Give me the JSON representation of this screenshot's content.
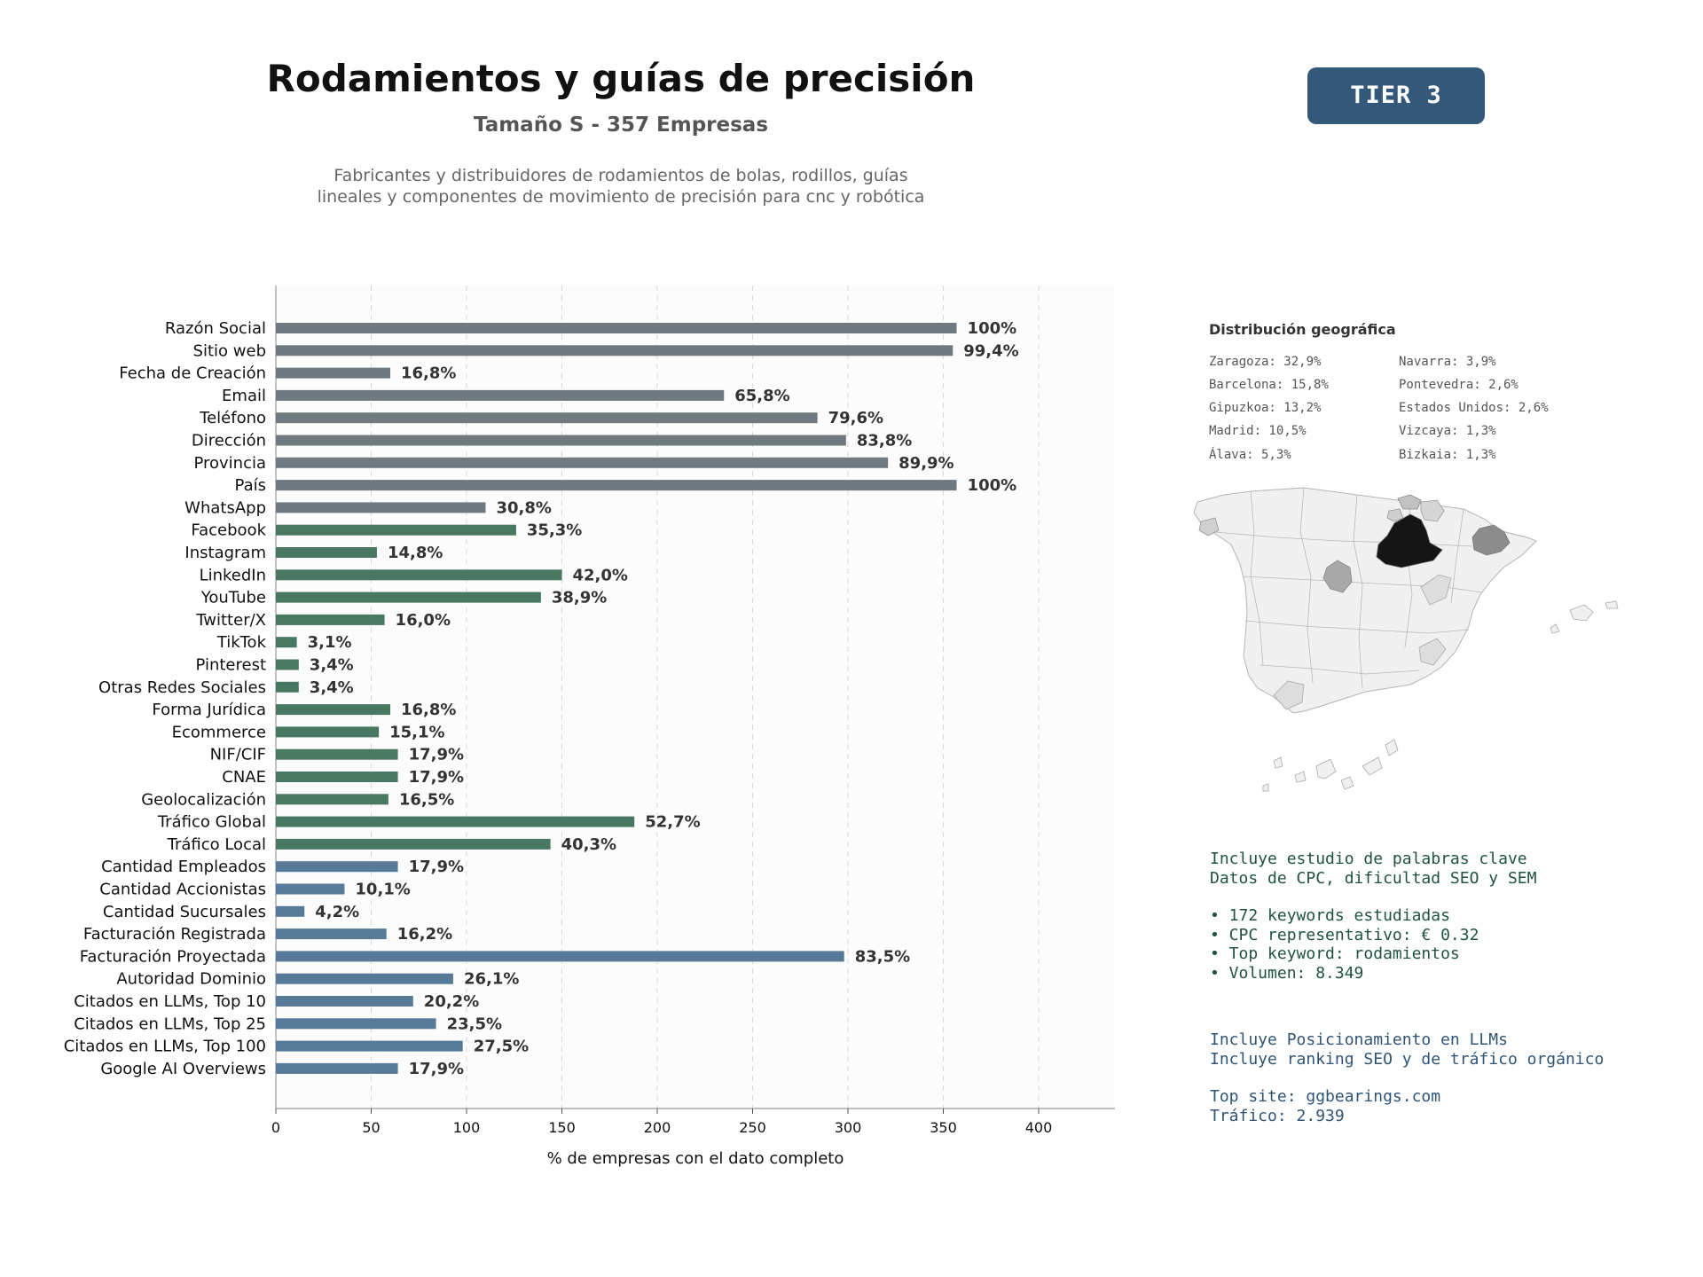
{
  "header": {
    "title": "Rodamientos y guías de precisión",
    "subtitle": "Tamaño S - 357 Empresas",
    "description_line1": "Fabricantes y distribuidores de rodamientos de bolas, rodillos, guías",
    "description_line2": "lineales y componentes de movimiento de precisión para cnc y robótica",
    "tier": "TIER 3"
  },
  "chart_data": {
    "type": "bar",
    "orientation": "horizontal",
    "xlabel": "% de empresas con el dato completo",
    "xlim": [
      0,
      440
    ],
    "xticks": [
      0,
      50,
      100,
      150,
      200,
      250,
      300,
      350,
      400
    ],
    "grid": true,
    "categories": [
      "Razón Social",
      "Sitio web",
      "Fecha de Creación",
      "Email",
      "Teléfono",
      "Dirección",
      "Provincia",
      "País",
      "WhatsApp",
      "Facebook",
      "Instagram",
      "LinkedIn",
      "YouTube",
      "Twitter/X",
      "TikTok",
      "Pinterest",
      "Otras Redes Sociales",
      "Forma Jurídica",
      "Ecommerce",
      "NIF/CIF",
      "CNAE",
      "Geolocalización",
      "Tráfico Global",
      "Tráfico Local",
      "Cantidad Empleados",
      "Cantidad Accionistas",
      "Cantidad Sucursales",
      "Facturación Registrada",
      "Facturación Proyectada",
      "Autoridad Dominio",
      "Citados en LLMs, Top 10",
      "Citados en LLMs, Top 25",
      "Citados en LLMs, Top 100",
      "Google AI Overviews"
    ],
    "values": [
      357,
      355,
      60,
      235,
      284,
      299,
      321,
      357,
      110,
      126,
      53,
      150,
      139,
      57,
      11,
      12,
      12,
      60,
      54,
      64,
      64,
      59,
      188,
      144,
      64,
      36,
      15,
      58,
      298,
      93,
      72,
      84,
      98,
      64
    ],
    "labels": [
      "100%",
      "99,4%",
      "16,8%",
      "65,8%",
      "79,6%",
      "83,8%",
      "89,9%",
      "100%",
      "30,8%",
      "35,3%",
      "14,8%",
      "42,0%",
      "38,9%",
      "16,0%",
      "3,1%",
      "3,4%",
      "3,4%",
      "16,8%",
      "15,1%",
      "17,9%",
      "17,9%",
      "16,5%",
      "52,7%",
      "40,3%",
      "17,9%",
      "10,1%",
      "4,2%",
      "16,2%",
      "83,5%",
      "26,1%",
      "20,2%",
      "23,5%",
      "27,5%",
      "17,9%"
    ],
    "groups": [
      "basic",
      "basic",
      "basic",
      "basic",
      "basic",
      "basic",
      "basic",
      "basic",
      "basic",
      "social",
      "social",
      "social",
      "social",
      "social",
      "social",
      "social",
      "social",
      "social",
      "social",
      "social",
      "social",
      "social",
      "social",
      "social",
      "business",
      "business",
      "business",
      "business",
      "business",
      "business",
      "business",
      "business",
      "business",
      "business"
    ],
    "colors": {
      "basic": "#6f7980",
      "social": "#487762",
      "business": "#567a97"
    }
  },
  "geo": {
    "title": "Distribución geográfica",
    "items_left": [
      "Zaragoza: 32,9%",
      "Barcelona: 15,8%",
      "Gipuzkoa: 13,2%",
      "Madrid: 10,5%",
      "Álava: 5,3%"
    ],
    "items_right": [
      "Navarra: 3,9%",
      "Pontevedra: 2,6%",
      "Estados Unidos: 2,6%",
      "Vizcaya: 1,3%",
      "Bizkaia: 1,3%"
    ]
  },
  "keywords": {
    "line1": "Incluye estudio de palabras clave",
    "line2": "Datos de CPC, dificultad SEO y SEM",
    "bullets": [
      "• 172 keywords estudiadas",
      "• CPC representativo: € 0.32",
      "• Top keyword: rodamientos",
      "• Volumen: 8.349"
    ]
  },
  "llm": {
    "line1": "Incluye Posicionamiento en LLMs",
    "line2": "Incluye ranking SEO y de tráfico orgánico",
    "top_site": "Top site: ggbearings.com",
    "traffic": "Tráfico: 2.939"
  }
}
